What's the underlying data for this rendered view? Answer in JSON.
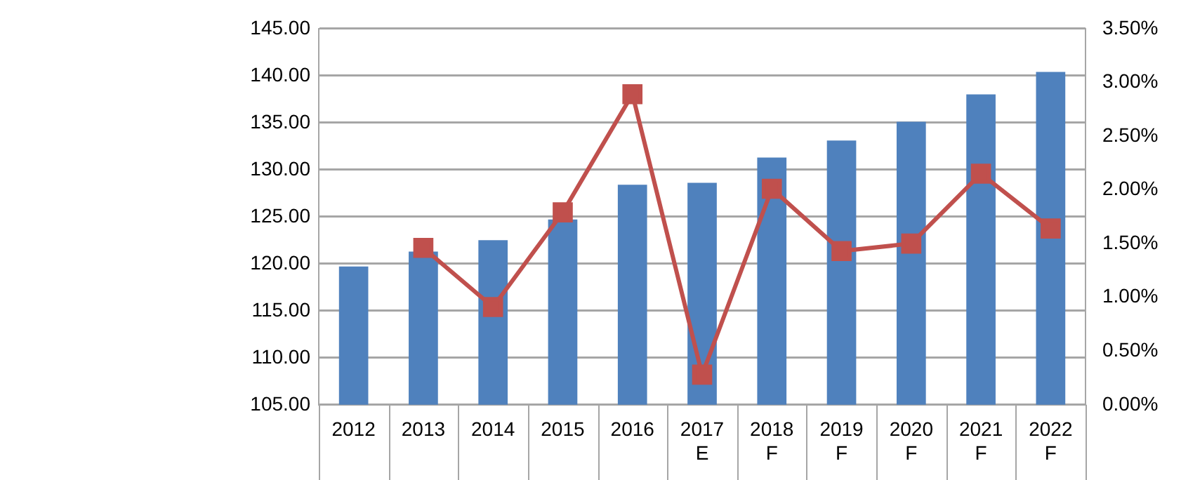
{
  "chart_data": {
    "type": "bar",
    "categories": [
      "2012",
      "2013",
      "2014",
      "2015",
      "2016",
      "2017 E",
      "2018 F",
      "2019 F",
      "2020 F",
      "2021 F",
      "2022 F"
    ],
    "series": [
      {
        "color": "#4f81bd",
        "values": [
          119.7,
          121.3,
          122.5,
          124.7,
          128.4,
          128.6,
          131.3,
          133.1,
          135.1,
          138.0,
          140.4
        ]
      },
      {
        "type": "line",
        "axis": "y2",
        "color": "#c0504d",
        "marker": "square",
        "values": [
          null,
          1.46,
          0.91,
          1.79,
          2.89,
          0.28,
          2.01,
          1.43,
          1.5,
          2.15,
          1.64
        ]
      }
    ],
    "ylim": [
      105,
      145
    ],
    "yticks": [
      {
        "value": 105,
        "label": "105.00"
      },
      {
        "value": 110,
        "label": "110.00"
      },
      {
        "value": 115,
        "label": "115.00"
      },
      {
        "value": 120,
        "label": "120.00"
      },
      {
        "value": 125,
        "label": "125.00"
      },
      {
        "value": 130,
        "label": "130.00"
      },
      {
        "value": 135,
        "label": "135.00"
      },
      {
        "value": 140,
        "label": "140.00"
      },
      {
        "value": 145,
        "label": "145.00"
      }
    ],
    "y2lim": [
      0,
      3.5
    ],
    "y2ticks": [
      {
        "value": 0,
        "label": "0.00%"
      },
      {
        "value": 0.5,
        "label": "0.50%"
      },
      {
        "value": 1,
        "label": "1.00%"
      },
      {
        "value": 1.5,
        "label": "1.50%"
      },
      {
        "value": 2,
        "label": "2.00%"
      },
      {
        "value": 2.5,
        "label": "2.50%"
      },
      {
        "value": 3,
        "label": "3.00%"
      },
      {
        "value": 3.5,
        "label": "3.50%"
      }
    ],
    "grid": "y",
    "legend": false
  }
}
